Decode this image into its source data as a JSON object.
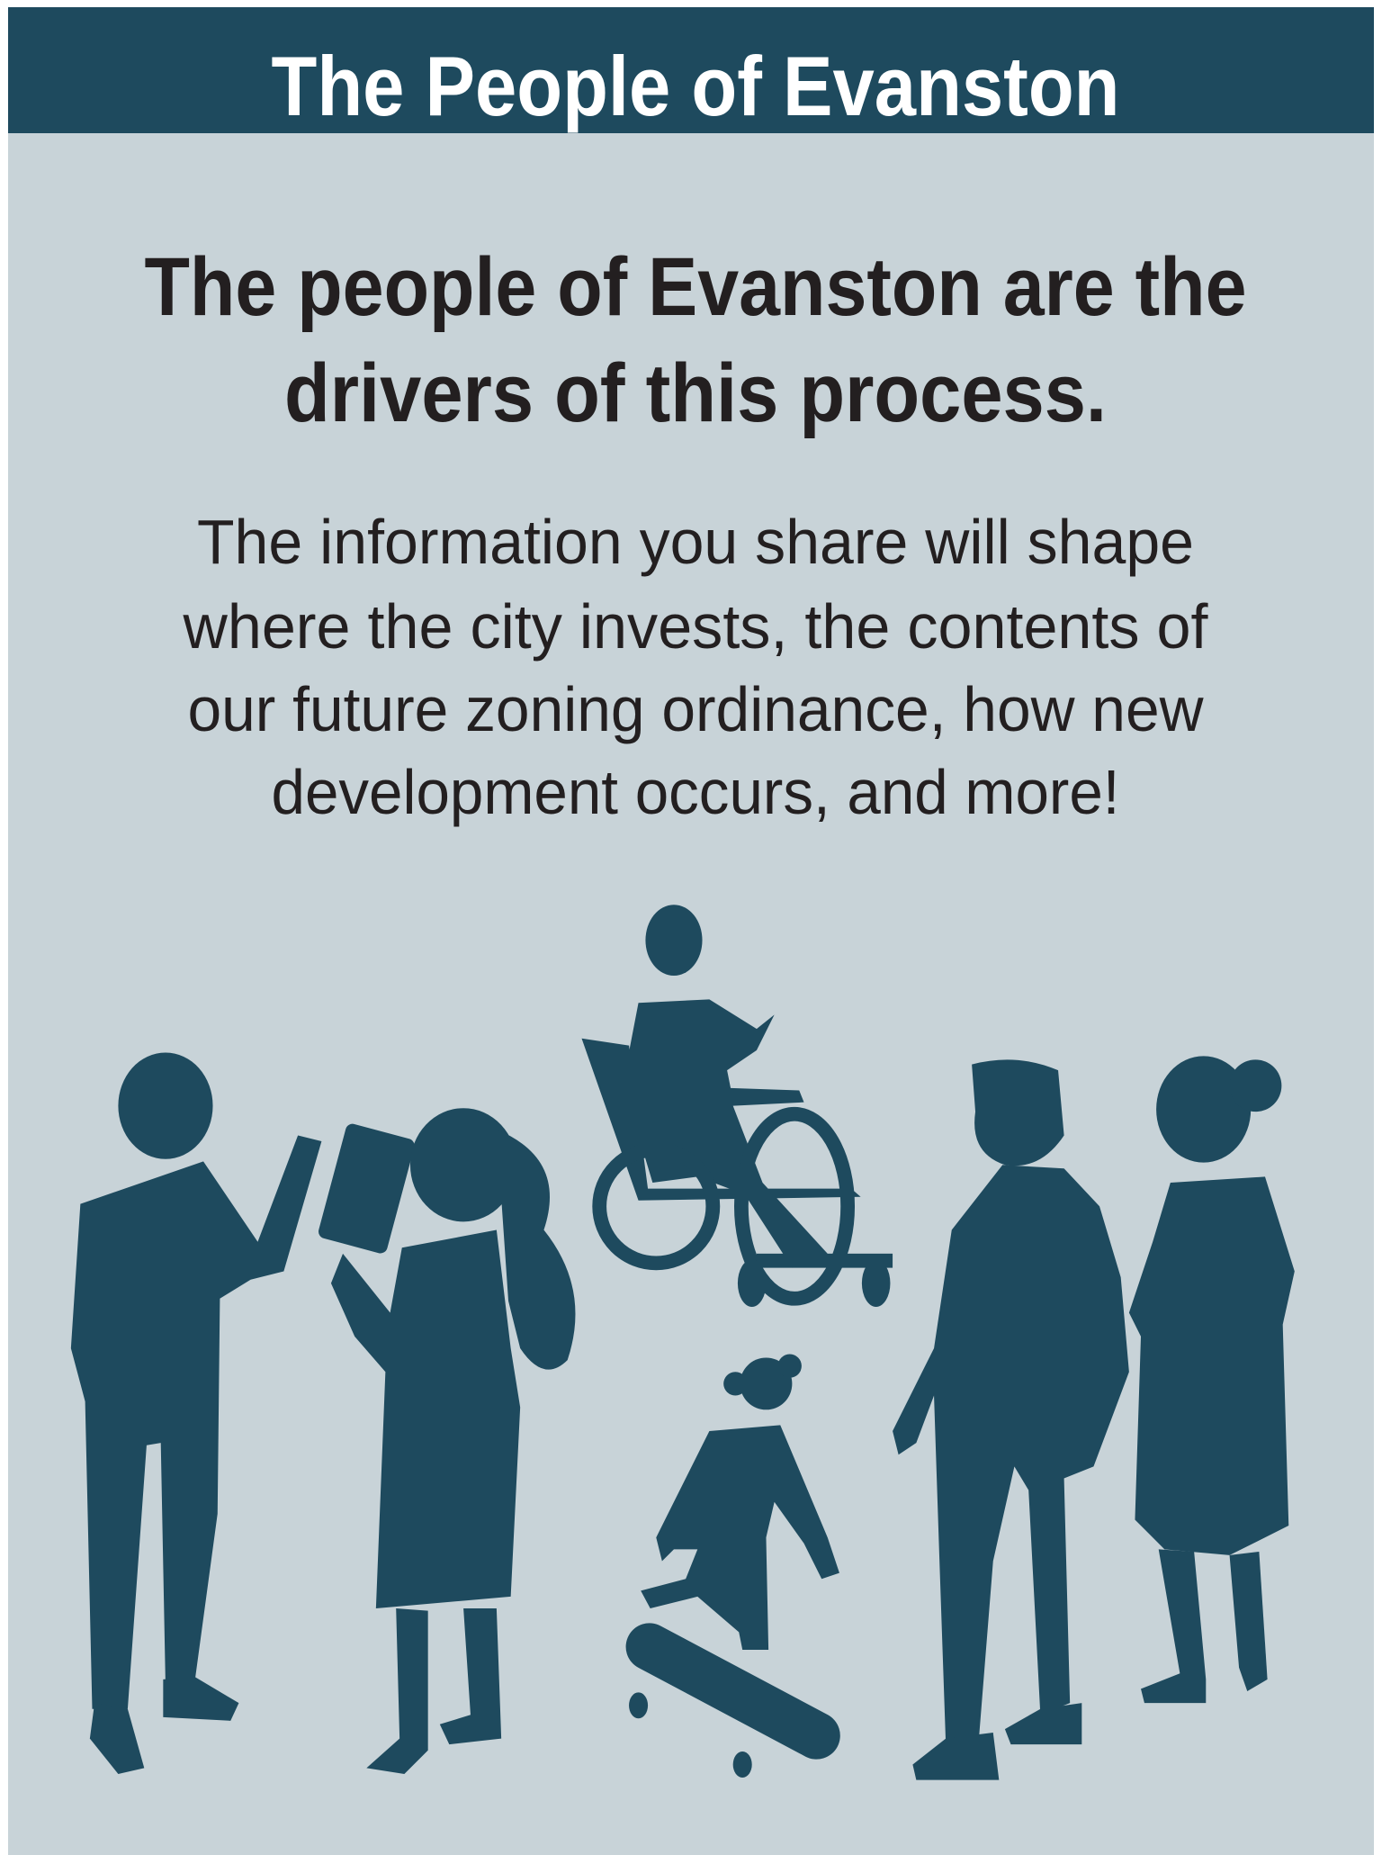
{
  "header": {
    "title": "The People of Evanston"
  },
  "heading": {
    "lines": [
      "The people of Evanston are the",
      "drivers of this process."
    ]
  },
  "body": {
    "lines": [
      "The information you share will shape",
      "where the city invests, the contents of",
      "our future zoning ordinance, how new",
      "development occurs, and more!"
    ]
  }
}
